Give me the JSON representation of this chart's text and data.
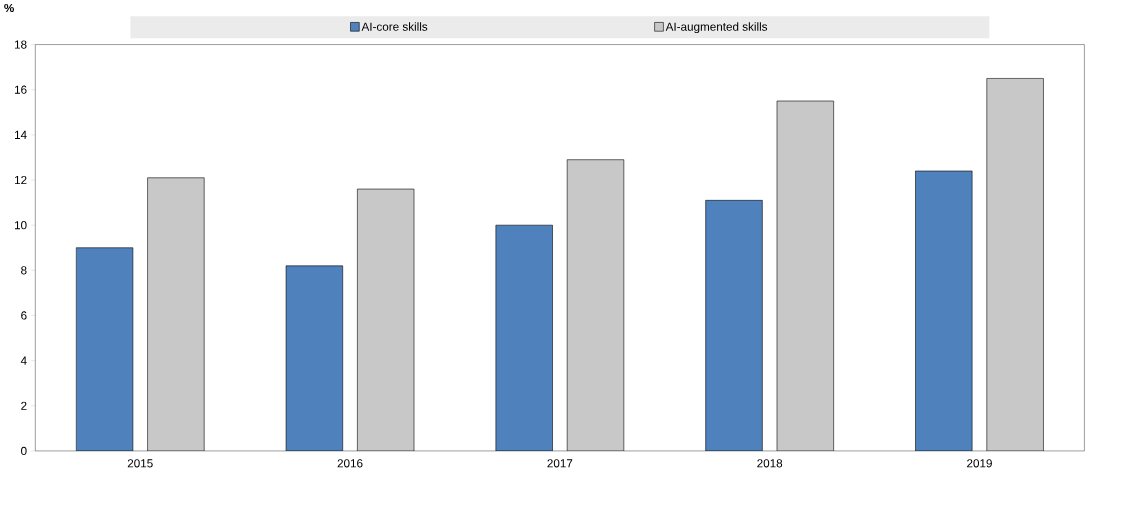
{
  "chart_data": {
    "type": "bar",
    "ylabel": "%",
    "categories": [
      "2015",
      "2016",
      "2017",
      "2018",
      "2019"
    ],
    "series": [
      {
        "name": "AI-core skills",
        "color": "#4f81bd",
        "values": [
          9.0,
          8.2,
          10.0,
          11.1,
          12.4
        ]
      },
      {
        "name": "AI-augmented skills",
        "color": "#c8c8c8",
        "values": [
          12.1,
          11.6,
          12.9,
          15.5,
          16.5
        ]
      }
    ],
    "ylim": [
      0,
      18
    ],
    "yticks": [
      0,
      2,
      4,
      6,
      8,
      10,
      12,
      14,
      16,
      18
    ],
    "legend": "top"
  }
}
